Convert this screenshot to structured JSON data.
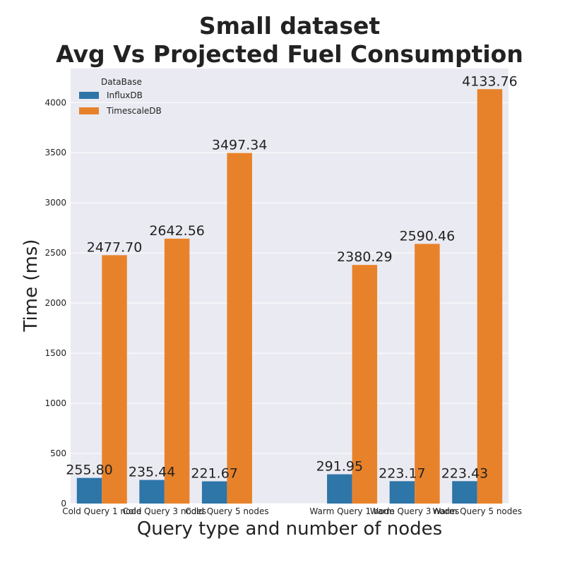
{
  "chart_data": {
    "type": "bar",
    "title": [
      "Small dataset",
      "Avg Vs Projected Fuel Consumption"
    ],
    "xlabel": "Query type and number of nodes",
    "ylabel": "Time (ms)",
    "categories": [
      "Cold Query 1 node",
      "Cold Query 3 nodes",
      "Cold Query 5 nodes",
      "",
      "Warm Query 1 node",
      "Warm Query 3 nodes",
      "Warm Query 5 nodes"
    ],
    "series": [
      {
        "name": "InfluxDB",
        "color": "#2e75a8",
        "values": [
          255.8,
          235.44,
          221.67,
          null,
          291.95,
          223.17,
          223.43
        ],
        "labels": [
          "255.80",
          "235.44",
          "221.67",
          "",
          "291.95",
          "223.17",
          "223.43"
        ]
      },
      {
        "name": "TimescaleDB",
        "color": "#e8822a",
        "values": [
          2477.7,
          2642.56,
          3497.34,
          null,
          2380.29,
          2590.46,
          4133.76
        ],
        "labels": [
          "2477.70",
          "2642.56",
          "3497.34",
          "",
          "2380.29",
          "2590.46",
          "4133.76"
        ]
      }
    ],
    "yticks": [
      "0",
      "500",
      "1000",
      "1500",
      "2000",
      "2500",
      "3000",
      "3500",
      "4000"
    ],
    "ylim": [
      0,
      4340
    ],
    "grid": true,
    "legend": {
      "title": "DataBase",
      "position": "top-left"
    },
    "background": "#eaeaf2"
  }
}
